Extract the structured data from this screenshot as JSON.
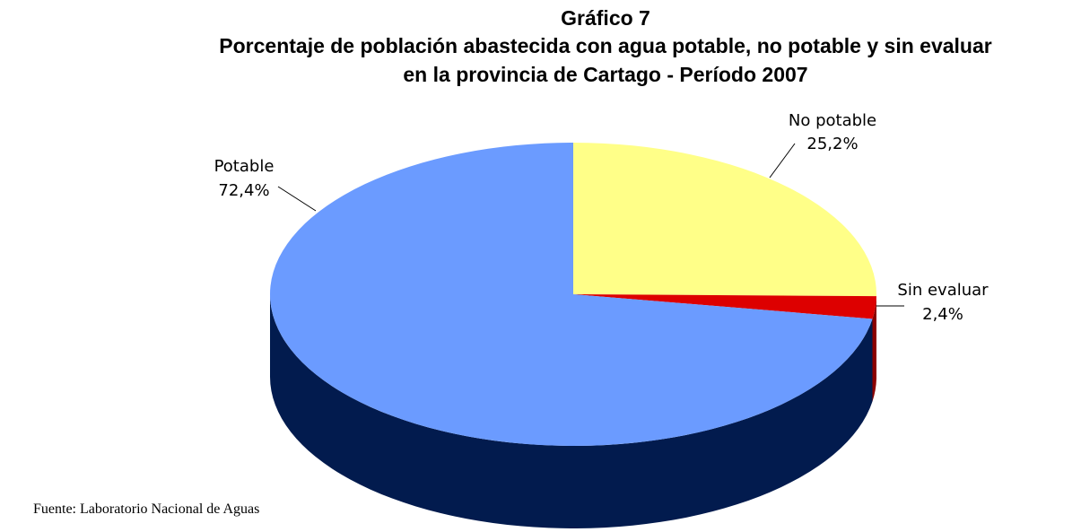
{
  "chart_data": {
    "type": "pie",
    "title": "Gráfico 7",
    "subtitle": "Porcentaje de población abastecida con agua potable, no potable y sin evaluar",
    "subtitle2": "en la provincia de Cartago - Período 2007",
    "slices": [
      {
        "name": "No potable",
        "value": 25.2,
        "label": "25,2%",
        "color": "#ffff88",
        "side_color": "#c8c860"
      },
      {
        "name": "Sin evaluar",
        "value": 2.4,
        "label": "2,4%",
        "color": "#dd0000",
        "side_color": "#8b0000"
      },
      {
        "name": "Potable",
        "value": 72.4,
        "label": "72,4%",
        "color": "#6b9bff",
        "side_color": "#021b4e"
      }
    ],
    "style": "3d"
  },
  "source": "Fuente: Laboratorio Nacional de Aguas"
}
